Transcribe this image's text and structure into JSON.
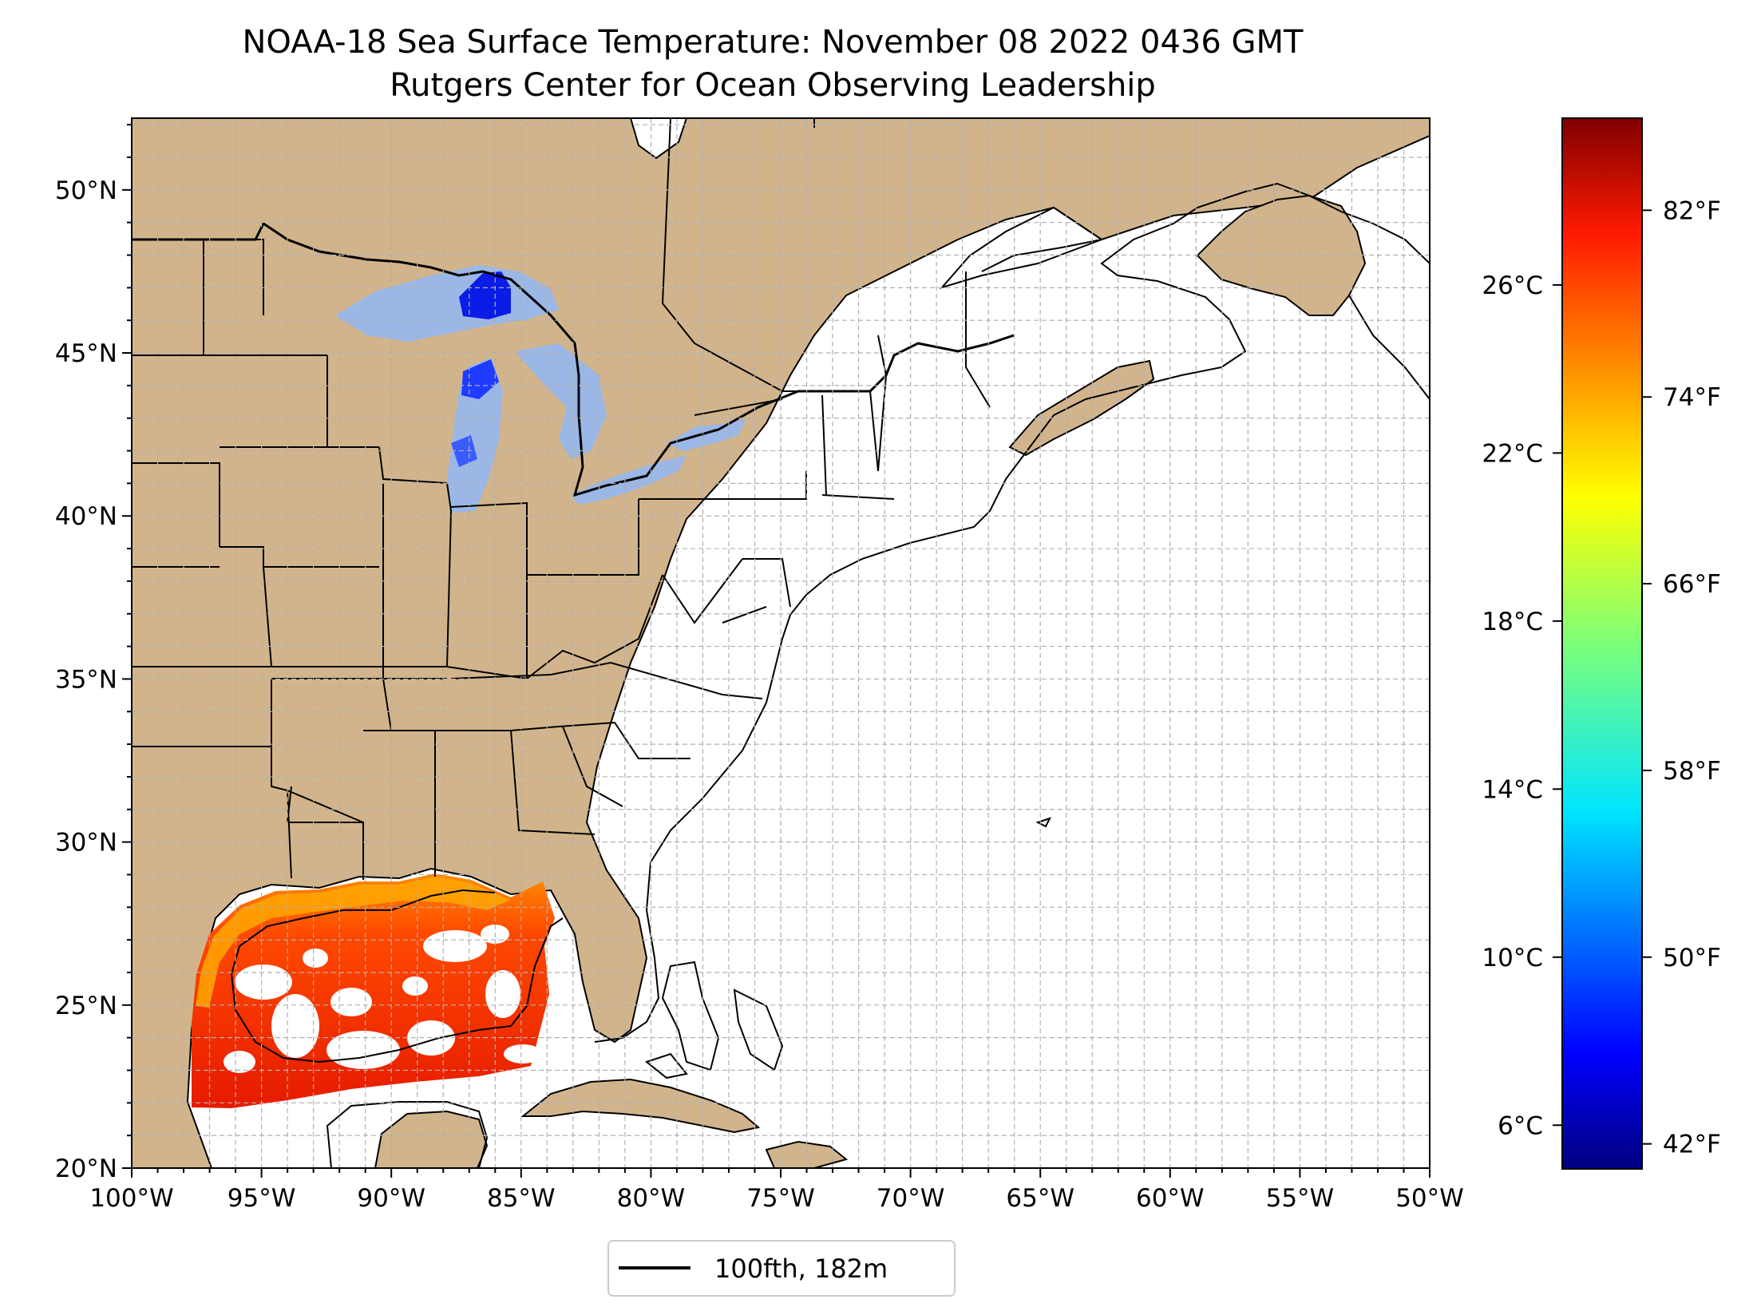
{
  "title": {
    "line1": "NOAA-18 Sea Surface Temperature: November 08 2022 0436 GMT",
    "line2": "Rutgers Center for Ocean Observing Leadership"
  },
  "map": {
    "lon_range": [
      -100,
      -50
    ],
    "lat_range": [
      20,
      52.2
    ],
    "land_color": "#d2b48c",
    "lake_color": "#9ab7e6",
    "ocean_color": "#ffffff",
    "grid": true,
    "x_ticks": [
      "100°W",
      "95°W",
      "90°W",
      "85°W",
      "80°W",
      "75°W",
      "70°W",
      "65°W",
      "60°W",
      "55°W",
      "50°W"
    ],
    "y_ticks": [
      "20°N",
      "25°N",
      "30°N",
      "35°N",
      "40°N",
      "45°N",
      "50°N"
    ]
  },
  "colorbar": {
    "colormap": "jet",
    "celsius_ticks": [
      "6°C",
      "10°C",
      "14°C",
      "18°C",
      "22°C",
      "26°C"
    ],
    "fahrenheit_ticks": [
      "42°F",
      "50°F",
      "58°F",
      "66°F",
      "74°F",
      "82°F"
    ]
  },
  "legend": {
    "placement": "bottom-center",
    "entries": [
      {
        "label": "100fth, 182m",
        "color": "#000000"
      }
    ]
  }
}
